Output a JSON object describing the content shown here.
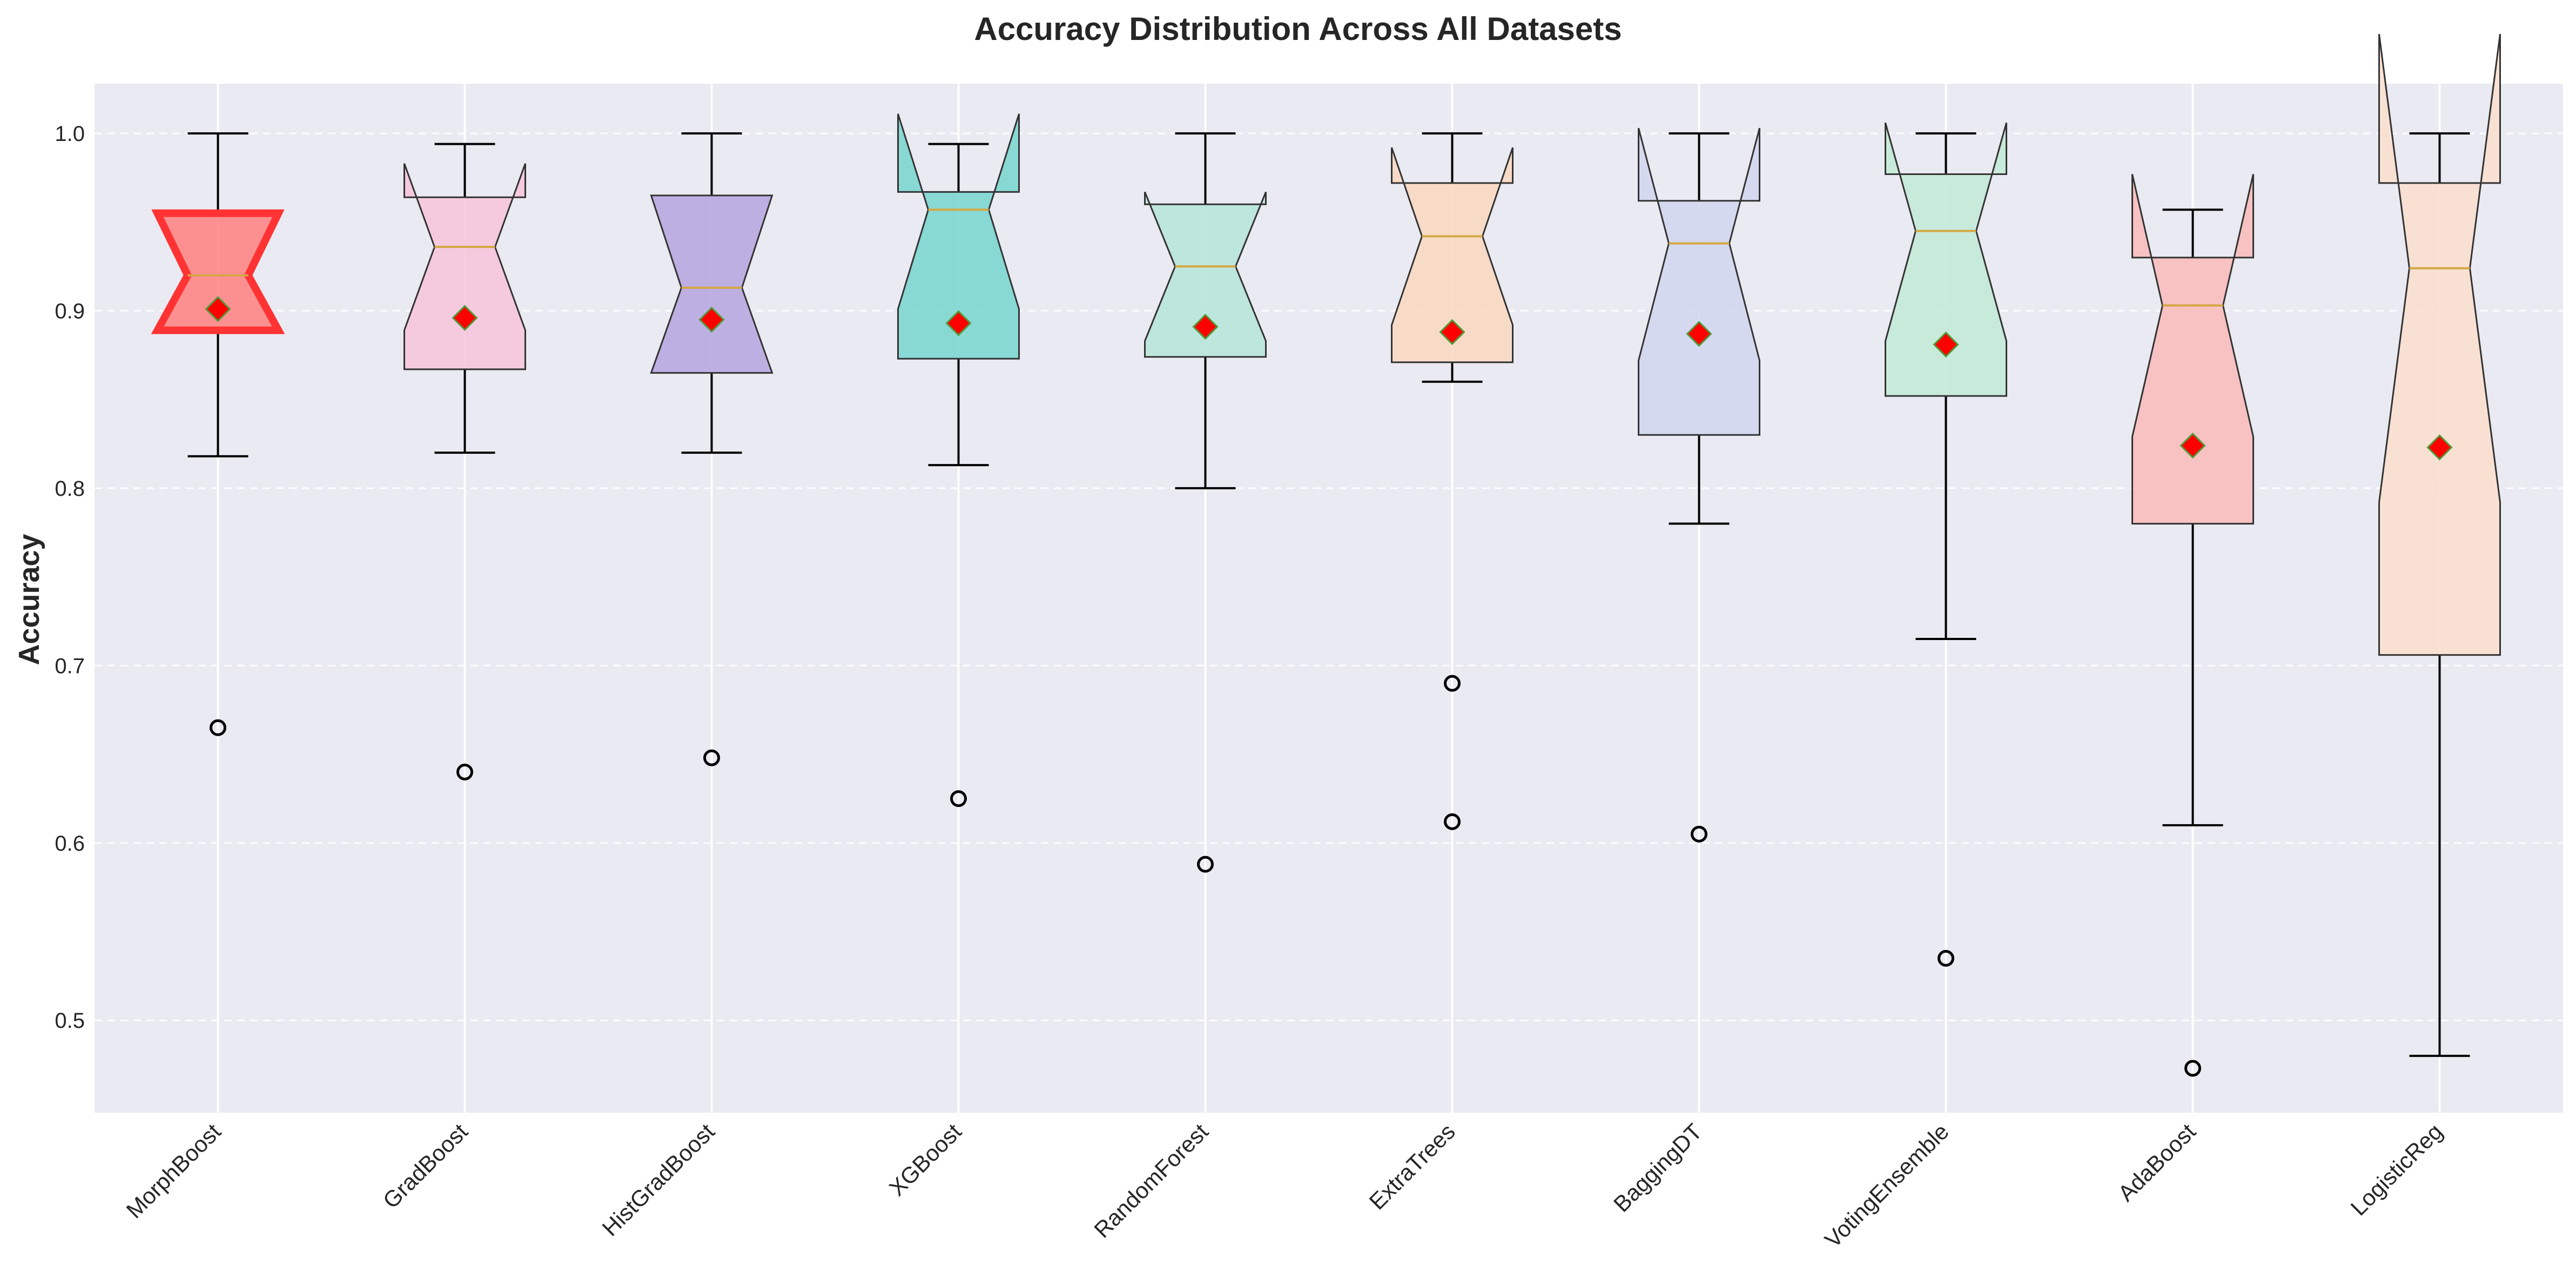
{
  "chart_data": {
    "type": "boxplot",
    "title": "Accuracy Distribution Across All Datasets",
    "xlabel": "",
    "ylabel": "Accuracy",
    "ylim": [
      0.448,
      1.028
    ],
    "yticks": [
      0.5,
      0.6,
      0.7,
      0.8,
      0.9,
      1.0
    ],
    "ytick_labels": [
      "0.5",
      "0.6",
      "0.7",
      "0.8",
      "0.9",
      "1.0"
    ],
    "grid": true,
    "notched": true,
    "mean_marker": "red diamond",
    "colors": {
      "background": "#eaeaf2",
      "grid": "#ffffff",
      "median_line": "#d4a843",
      "mean_marker_fill": "#ff0000",
      "mean_marker_edge": "#4f9b3a",
      "box_edge": "#333333",
      "highlight_edge": "#ff3333"
    },
    "series": [
      {
        "name": "MorphBoost",
        "whisker_low": 0.818,
        "q1": 0.889,
        "median": 0.92,
        "q3": 0.955,
        "whisker_high": 1.0,
        "notch_low": 0.889,
        "notch_high": 0.955,
        "mean": 0.901,
        "outliers": [
          0.665
        ],
        "color": "#ff8080",
        "highlight": true
      },
      {
        "name": "GradBoost",
        "whisker_low": 0.82,
        "q1": 0.867,
        "median": 0.936,
        "q3": 0.964,
        "whisker_high": 0.994,
        "notch_low": 0.889,
        "notch_high": 0.983,
        "mean": 0.896,
        "outliers": [
          0.64
        ],
        "color": "#f7c6dc",
        "highlight": false
      },
      {
        "name": "HistGradBoost",
        "whisker_low": 0.82,
        "q1": 0.865,
        "median": 0.913,
        "q3": 0.965,
        "whisker_high": 1.0,
        "notch_low": 0.865,
        "notch_high": 0.965,
        "mean": 0.895,
        "outliers": [
          0.648
        ],
        "color": "#b9a8e0",
        "highlight": false
      },
      {
        "name": "XGBoost",
        "whisker_low": 0.813,
        "q1": 0.873,
        "median": 0.957,
        "q3": 0.967,
        "whisker_high": 0.994,
        "notch_low": 0.901,
        "notch_high": 1.011,
        "mean": 0.893,
        "outliers": [
          0.625
        ],
        "color": "#7dd6d0",
        "highlight": false
      },
      {
        "name": "RandomForest",
        "whisker_low": 0.8,
        "q1": 0.874,
        "median": 0.925,
        "q3": 0.96,
        "whisker_high": 1.0,
        "notch_low": 0.883,
        "notch_high": 0.967,
        "mean": 0.891,
        "outliers": [
          0.588
        ],
        "color": "#b8e6d9",
        "highlight": false
      },
      {
        "name": "ExtraTrees",
        "whisker_low": 0.86,
        "q1": 0.871,
        "median": 0.942,
        "q3": 0.972,
        "whisker_high": 1.0,
        "notch_low": 0.892,
        "notch_high": 0.992,
        "mean": 0.888,
        "outliers": [
          0.69,
          0.612
        ],
        "color": "#fad9c2",
        "highlight": false
      },
      {
        "name": "BaggingDT",
        "whisker_low": 0.78,
        "q1": 0.83,
        "median": 0.938,
        "q3": 0.962,
        "whisker_high": 1.0,
        "notch_low": 0.872,
        "notch_high": 1.003,
        "mean": 0.887,
        "outliers": [
          0.605
        ],
        "color": "#d3d7ee",
        "highlight": false
      },
      {
        "name": "VotingEnsemble",
        "whisker_low": 0.715,
        "q1": 0.852,
        "median": 0.945,
        "q3": 0.977,
        "whisker_high": 1.0,
        "notch_low": 0.883,
        "notch_high": 1.006,
        "mean": 0.881,
        "outliers": [
          0.535
        ],
        "color": "#c4ead8",
        "highlight": false
      },
      {
        "name": "AdaBoost",
        "whisker_low": 0.61,
        "q1": 0.78,
        "median": 0.903,
        "q3": 0.93,
        "whisker_high": 0.957,
        "notch_low": 0.829,
        "notch_high": 0.977,
        "mean": 0.824,
        "outliers": [
          0.473
        ],
        "color": "#f9bcbc",
        "highlight": false
      },
      {
        "name": "LogisticReg",
        "whisker_low": 0.48,
        "q1": 0.706,
        "median": 0.924,
        "q3": 0.972,
        "whisker_high": 1.0,
        "notch_low": 0.792,
        "notch_high": 1.056,
        "mean": 0.823,
        "outliers": [],
        "color": "#fadfcf",
        "highlight": false
      }
    ]
  }
}
